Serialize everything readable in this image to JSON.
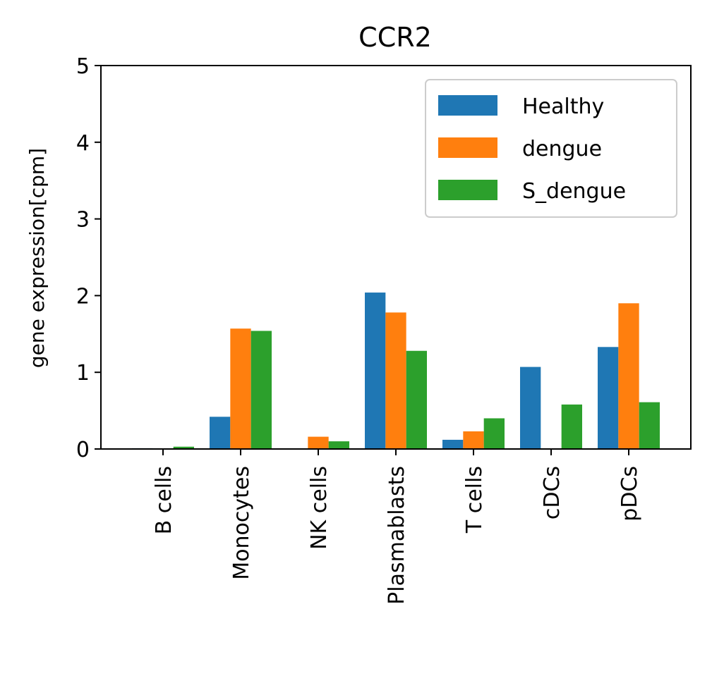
{
  "chart_data": {
    "type": "bar",
    "title": "CCR2",
    "xlabel": "",
    "ylabel": "gene expression[cpm]",
    "ylim": [
      0,
      5
    ],
    "yticks": [
      0,
      1,
      2,
      3,
      4,
      5
    ],
    "categories": [
      "B cells",
      "Monocytes",
      "NK cells",
      "Plasmablasts",
      "T cells",
      "cDCs",
      "pDCs"
    ],
    "series": [
      {
        "name": "Healthy",
        "color": "#1f77b4",
        "values": [
          0.01,
          0.42,
          0.0,
          2.04,
          0.12,
          1.07,
          1.33
        ]
      },
      {
        "name": "dengue",
        "color": "#ff7f0e",
        "values": [
          0.0,
          1.57,
          0.16,
          1.78,
          0.23,
          0.0,
          1.9
        ]
      },
      {
        "name": "S_dengue",
        "color": "#2ca02c",
        "values": [
          0.03,
          1.54,
          0.1,
          1.28,
          0.4,
          0.58,
          0.61
        ]
      }
    ],
    "grid": false,
    "legend_position": "top-right"
  }
}
